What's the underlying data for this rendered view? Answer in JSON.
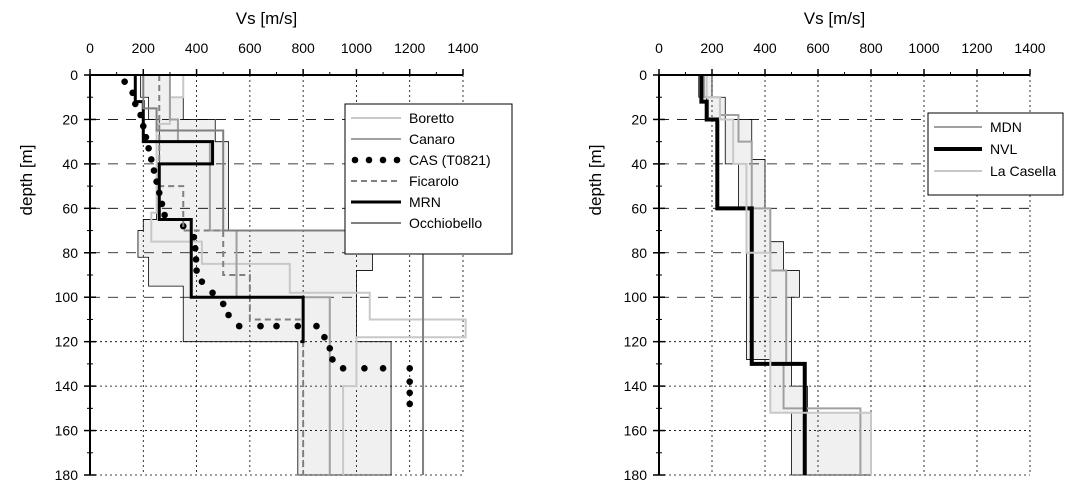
{
  "chart_data": [
    {
      "type": "line",
      "title": "",
      "xlabel": "Vs [m/s]",
      "ylabel": "depth [m]",
      "xlim": [
        0,
        1400
      ],
      "ylim": [
        0,
        180
      ],
      "y_inverted": true,
      "x_axis_position": "top",
      "xticks": [
        "0",
        "200",
        "400",
        "600",
        "800",
        "1000",
        "1200",
        "1400"
      ],
      "yticks": [
        "0",
        "20",
        "40",
        "60",
        "80",
        "100",
        "120",
        "140",
        "160",
        "180"
      ],
      "legend_position": "top-right",
      "envelope": {
        "color": "#f0f0f0",
        "lower": [
          [
            190,
            0
          ],
          [
            190,
            10
          ],
          [
            220,
            10
          ],
          [
            220,
            20
          ],
          [
            260,
            20
          ],
          [
            260,
            40
          ],
          [
            250,
            40
          ],
          [
            250,
            65
          ],
          [
            200,
            65
          ],
          [
            200,
            70
          ],
          [
            180,
            70
          ],
          [
            180,
            82
          ],
          [
            220,
            82
          ],
          [
            220,
            95
          ],
          [
            350,
            95
          ],
          [
            350,
            120
          ],
          [
            780,
            120
          ],
          [
            780,
            180
          ]
        ],
        "upper": [
          [
            300,
            0
          ],
          [
            300,
            10
          ],
          [
            350,
            10
          ],
          [
            350,
            20
          ],
          [
            470,
            20
          ],
          [
            470,
            30
          ],
          [
            520,
            30
          ],
          [
            520,
            65
          ],
          [
            520,
            65
          ],
          [
            520,
            70
          ],
          [
            1060,
            70
          ],
          [
            1060,
            88
          ],
          [
            1000,
            88
          ],
          [
            1000,
            120
          ],
          [
            1130,
            120
          ],
          [
            1130,
            180
          ]
        ]
      },
      "series": [
        {
          "name": "Boretto",
          "color": "#c8c8c8",
          "width": 2,
          "dash": "solid",
          "points": [
            [
              350,
              0
            ],
            [
              350,
              10
            ],
            [
              300,
              10
            ],
            [
              300,
              22
            ],
            [
              250,
              22
            ],
            [
              250,
              62
            ],
            [
              230,
              62
            ],
            [
              230,
              75
            ],
            [
              420,
              75
            ],
            [
              420,
              85
            ],
            [
              750,
              85
            ],
            [
              750,
              98
            ],
            [
              1050,
              98
            ],
            [
              1050,
              110
            ],
            [
              1410,
              110
            ],
            [
              1410,
              118
            ],
            [
              1000,
              118
            ],
            [
              1000,
              140
            ],
            [
              950,
              140
            ],
            [
              950,
              180
            ]
          ]
        },
        {
          "name": "Canaro",
          "color": "#a0a0a0",
          "width": 2,
          "dash": "solid",
          "points": [
            [
              300,
              0
            ],
            [
              300,
              20
            ],
            [
              330,
              20
            ],
            [
              330,
              30
            ],
            [
              450,
              30
            ],
            [
              450,
              70
            ],
            [
              550,
              70
            ],
            [
              550,
              100
            ],
            [
              900,
              100
            ],
            [
              900,
              180
            ]
          ]
        },
        {
          "name": "CAS (T0821)",
          "color": "#000000",
          "width": 0,
          "dots": true,
          "points": [
            [
              130,
              3
            ],
            [
              160,
              8
            ],
            [
              170,
              13
            ],
            [
              190,
              18
            ],
            [
              200,
              23
            ],
            [
              210,
              28
            ],
            [
              220,
              33
            ],
            [
              230,
              38
            ],
            [
              240,
              43
            ],
            [
              250,
              48
            ],
            [
              260,
              53
            ],
            [
              270,
              58
            ],
            [
              280,
              63
            ],
            [
              350,
              68
            ],
            [
              390,
              73
            ],
            [
              395,
              78
            ],
            [
              398,
              83
            ],
            [
              400,
              88
            ],
            [
              420,
              93
            ],
            [
              460,
              98
            ],
            [
              500,
              103
            ],
            [
              520,
              108
            ],
            [
              560,
              113
            ],
            [
              640,
              113
            ],
            [
              700,
              113
            ],
            [
              780,
              113
            ],
            [
              850,
              113
            ],
            [
              880,
              118
            ],
            [
              900,
              123
            ],
            [
              910,
              128
            ],
            [
              950,
              132
            ],
            [
              1030,
              132
            ],
            [
              1100,
              132
            ],
            [
              1200,
              132
            ],
            [
              1200,
              138
            ],
            [
              1200,
              143
            ],
            [
              1200,
              148
            ]
          ]
        },
        {
          "name": "Ficarolo",
          "color": "#808080",
          "width": 2,
          "dash": "6,4",
          "points": [
            [
              260,
              0
            ],
            [
              260,
              50
            ],
            [
              350,
              50
            ],
            [
              350,
              70
            ],
            [
              500,
              70
            ],
            [
              500,
              90
            ],
            [
              600,
              90
            ],
            [
              600,
              110
            ],
            [
              800,
              110
            ],
            [
              800,
              180
            ]
          ]
        },
        {
          "name": "MRN",
          "color": "#000000",
          "width": 3,
          "dash": "solid",
          "points": [
            [
              170,
              0
            ],
            [
              170,
              12
            ],
            [
              200,
              12
            ],
            [
              200,
              30
            ],
            [
              460,
              30
            ],
            [
              460,
              40
            ],
            [
              260,
              40
            ],
            [
              260,
              65
            ],
            [
              380,
              65
            ],
            [
              380,
              100
            ],
            [
              800,
              100
            ],
            [
              800,
              120
            ],
            [
              790,
              120
            ]
          ]
        },
        {
          "name": "Occhiobello",
          "color": "#808080",
          "width": 2,
          "dash": "solid",
          "points": [
            [
              200,
              0
            ],
            [
              200,
              15
            ],
            [
              250,
              15
            ],
            [
              250,
              25
            ],
            [
              500,
              25
            ],
            [
              500,
              70
            ],
            [
              1250,
              70
            ],
            [
              1250,
              180
            ]
          ]
        }
      ]
    },
    {
      "type": "line",
      "title": "",
      "xlabel": "Vs [m/s]",
      "ylabel": "depth [m]",
      "xlim": [
        0,
        1400
      ],
      "ylim": [
        0,
        180
      ],
      "y_inverted": true,
      "x_axis_position": "top",
      "xticks": [
        "0",
        "200",
        "400",
        "600",
        "800",
        "1000",
        "1200",
        "1400"
      ],
      "yticks": [
        "0",
        "20",
        "40",
        "60",
        "80",
        "100",
        "120",
        "140",
        "160",
        "180"
      ],
      "legend_position": "top-right",
      "envelope": {
        "color": "#f0f0f0",
        "lower": [
          [
            150,
            0
          ],
          [
            150,
            10
          ],
          [
            180,
            10
          ],
          [
            180,
            20
          ],
          [
            250,
            20
          ],
          [
            250,
            40
          ],
          [
            300,
            40
          ],
          [
            300,
            60
          ],
          [
            330,
            60
          ],
          [
            330,
            128
          ],
          [
            420,
            128
          ],
          [
            420,
            152
          ],
          [
            500,
            152
          ],
          [
            500,
            180
          ]
        ],
        "upper": [
          [
            200,
            0
          ],
          [
            200,
            10
          ],
          [
            250,
            10
          ],
          [
            250,
            20
          ],
          [
            350,
            20
          ],
          [
            350,
            38
          ],
          [
            400,
            38
          ],
          [
            400,
            60
          ],
          [
            420,
            60
          ],
          [
            420,
            75
          ],
          [
            470,
            75
          ],
          [
            470,
            88
          ],
          [
            530,
            88
          ],
          [
            530,
            100
          ],
          [
            500,
            100
          ],
          [
            500,
            140
          ],
          [
            560,
            140
          ],
          [
            560,
            152
          ],
          [
            800,
            152
          ],
          [
            800,
            180
          ]
        ]
      },
      "series": [
        {
          "name": "MDN",
          "color": "#a0a0a0",
          "width": 2,
          "dash": "solid",
          "points": [
            [
              170,
              0
            ],
            [
              170,
              10
            ],
            [
              230,
              10
            ],
            [
              230,
              18
            ],
            [
              300,
              18
            ],
            [
              300,
              30
            ],
            [
              350,
              30
            ],
            [
              350,
              60
            ],
            [
              420,
              60
            ],
            [
              420,
              88
            ],
            [
              480,
              88
            ],
            [
              480,
              130
            ],
            [
              470,
              130
            ],
            [
              470,
              150
            ],
            [
              760,
              150
            ],
            [
              760,
              180
            ]
          ]
        },
        {
          "name": "NVL",
          "color": "#000000",
          "width": 4,
          "dash": "solid",
          "points": [
            [
              160,
              0
            ],
            [
              160,
              12
            ],
            [
              180,
              12
            ],
            [
              180,
              20
            ],
            [
              220,
              20
            ],
            [
              220,
              25
            ],
            [
              220,
              60
            ],
            [
              350,
              60
            ],
            [
              350,
              130
            ],
            [
              550,
              130
            ],
            [
              550,
              180
            ]
          ]
        },
        {
          "name": "La Casella",
          "color": "#c8c8c8",
          "width": 2,
          "dash": "solid",
          "points": [
            [
              180,
              0
            ],
            [
              180,
              10
            ],
            [
              230,
              10
            ],
            [
              230,
              20
            ],
            [
              280,
              20
            ],
            [
              280,
              40
            ],
            [
              330,
              40
            ],
            [
              330,
              80
            ],
            [
              420,
              80
            ],
            [
              420,
              152
            ],
            [
              800,
              152
            ],
            [
              800,
              180
            ]
          ]
        }
      ]
    }
  ]
}
